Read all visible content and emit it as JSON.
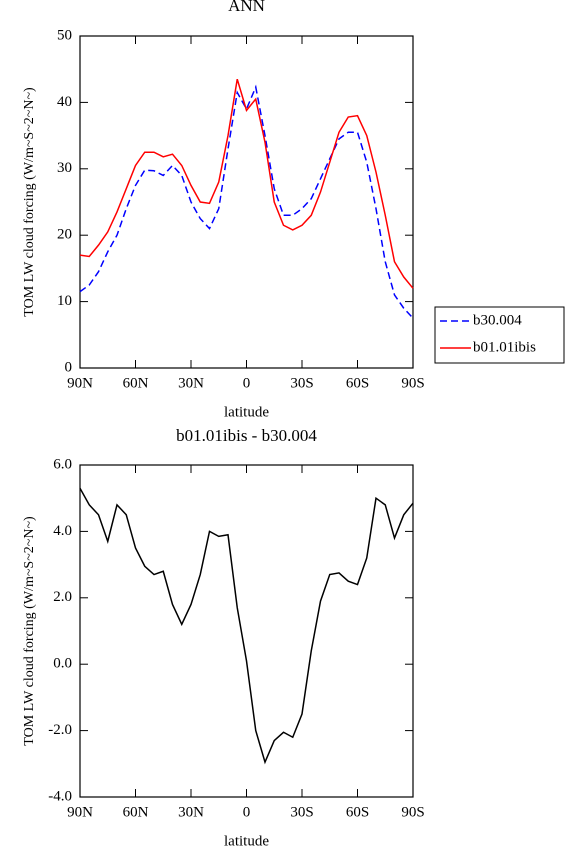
{
  "chart_data": [
    {
      "type": "line",
      "title": "ANN",
      "xlabel": "latitude",
      "ylabel": "TOM LW cloud forcing (W/m~S~2~N~)",
      "x": [
        90,
        85,
        80,
        75,
        70,
        65,
        60,
        55,
        50,
        45,
        40,
        35,
        30,
        25,
        20,
        15,
        10,
        5,
        0,
        -5,
        -10,
        -15,
        -20,
        -25,
        -30,
        -35,
        -40,
        -45,
        -50,
        -55,
        -60,
        -65,
        -70,
        -75,
        -80,
        -85,
        -90
      ],
      "series": [
        {
          "name": "b30.004",
          "color": "#0000ff",
          "dash": true,
          "values": [
            11.5,
            12.5,
            14.5,
            17.5,
            20,
            24,
            27.5,
            29.8,
            29.7,
            29,
            30.5,
            29,
            25,
            22.5,
            21,
            24,
            33,
            41.5,
            39,
            42.3,
            35,
            27,
            23,
            23,
            24,
            25.5,
            28.5,
            31.5,
            34.5,
            35.5,
            35.5,
            31,
            24,
            16,
            11,
            9,
            7.5
          ]
        },
        {
          "name": "b01.01ibis",
          "color": "#ff0000",
          "dash": false,
          "values": [
            17,
            16.8,
            18.5,
            20.5,
            23.5,
            27,
            30.5,
            32.5,
            32.5,
            31.8,
            32.2,
            30.5,
            27.5,
            25,
            24.8,
            28,
            35,
            43.5,
            38.8,
            40.5,
            34,
            25,
            21.5,
            20.8,
            21.5,
            23,
            26.5,
            31,
            35.5,
            37.8,
            38,
            35,
            29.5,
            23,
            16,
            13.7,
            12
          ]
        }
      ],
      "xlim": [
        90,
        -90
      ],
      "xticks": [
        {
          "value": 90,
          "label": "90N"
        },
        {
          "value": 60,
          "label": "60N"
        },
        {
          "value": 30,
          "label": "30N"
        },
        0,
        {
          "value": -30,
          "label": "30S"
        },
        {
          "value": -60,
          "label": "60S"
        },
        {
          "value": -90,
          "label": "90S"
        }
      ],
      "ylim": [
        0,
        50
      ],
      "yticks": [
        0,
        10,
        20,
        30,
        40,
        50
      ],
      "legend": "right"
    },
    {
      "type": "line",
      "title": "b01.01ibis - b30.004",
      "xlabel": "latitude",
      "ylabel": "TOM LW cloud forcing (W/m~S~2~N~)",
      "x": [
        90,
        85,
        80,
        75,
        70,
        65,
        60,
        55,
        50,
        45,
        40,
        35,
        30,
        25,
        20,
        15,
        10,
        5,
        0,
        -5,
        -10,
        -15,
        -20,
        -25,
        -30,
        -35,
        -40,
        -45,
        -50,
        -55,
        -60,
        -65,
        -70,
        -75,
        -80,
        -85,
        -90
      ],
      "values": [
        5.3,
        4.8,
        4.5,
        3.7,
        4.8,
        4.5,
        3.5,
        2.95,
        2.7,
        2.8,
        1.8,
        1.2,
        1.8,
        2.7,
        4.0,
        3.85,
        3.9,
        1.7,
        0.1,
        -2.0,
        -2.95,
        -2.3,
        -2.05,
        -2.2,
        -1.5,
        0.4,
        1.9,
        2.7,
        2.75,
        2.5,
        2.4,
        3.2,
        5.0,
        4.8,
        3.8,
        4.5,
        4.85
      ],
      "color": "#000000",
      "xlim": [
        90,
        -90
      ],
      "xticks": [
        {
          "value": 90,
          "label": "90N"
        },
        {
          "value": 60,
          "label": "60N"
        },
        {
          "value": 30,
          "label": "30N"
        },
        0,
        {
          "value": -30,
          "label": "30S"
        },
        {
          "value": -60,
          "label": "60S"
        },
        {
          "value": -90,
          "label": "90S"
        }
      ],
      "ylim": [
        -4,
        6
      ],
      "yticks": [
        {
          "value": -4,
          "label": "-4.0"
        },
        {
          "value": -2,
          "label": "-2.0"
        },
        {
          "value": 0,
          "label": "0.0"
        },
        {
          "value": 2,
          "label": "2.0"
        },
        {
          "value": 4,
          "label": "4.0"
        },
        {
          "value": 6,
          "label": "6.0"
        }
      ]
    }
  ]
}
